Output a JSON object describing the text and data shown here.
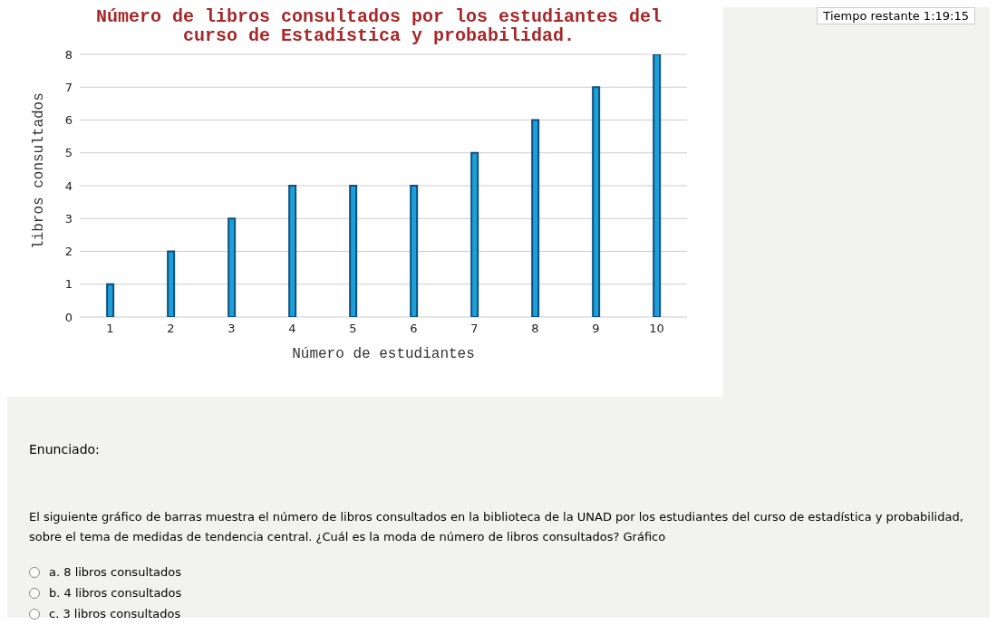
{
  "chart_data": {
    "type": "bar",
    "title": "Número de libros consultados  por los estudiantes del curso de Estadística y probabilidad.",
    "xlabel": "Número de estudiantes",
    "ylabel": "libros consultados",
    "categories": [
      "1",
      "2",
      "3",
      "4",
      "5",
      "6",
      "7",
      "8",
      "9",
      "10"
    ],
    "values": [
      1,
      2,
      3,
      4,
      4,
      4,
      5,
      6,
      7,
      8
    ],
    "color": "#1e9fd8",
    "ylim": [
      0,
      8
    ],
    "yticks": [
      0,
      1,
      2,
      3,
      4,
      5,
      6,
      7,
      8
    ],
    "grid": "y",
    "annotations": [
      "Tiempo restante 1:19:15",
      "Enunciado:",
      "El siguiente gráfico de barras muestra el número de libros consultados en la biblioteca de la UNAD por los estudiantes del curso de estadística y probabilidad, sobre el tema de medidas de tendencia central. ¿Cuál es la moda de número de libros consultados? Gráfico",
      "a.  8 libros consultados",
      "b.  4 libros consultados",
      "c.  3 libros consultados"
    ]
  }
}
